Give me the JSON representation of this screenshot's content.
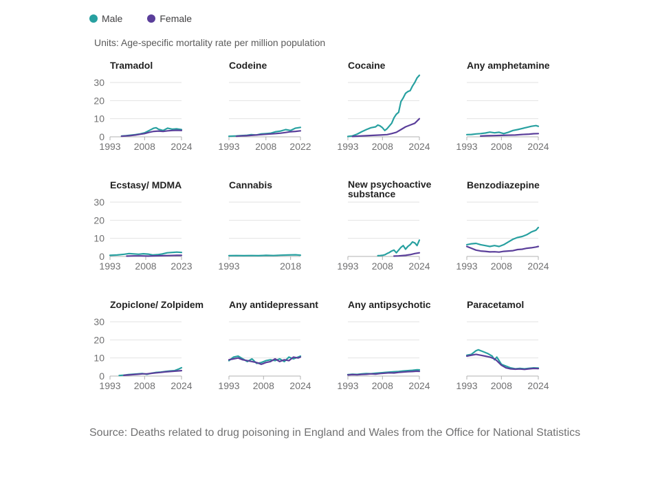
{
  "legend": [
    {
      "name": "Male",
      "color": "#27a0a0"
    },
    {
      "name": "Female",
      "color": "#5a3e9a"
    }
  ],
  "units_label": "Units: Age-specific mortality rate per million population",
  "source": "Source: Deaths related to drug poisoning in England and Wales from the Office for National Statistics",
  "chart_data": [
    {
      "type": "line",
      "title": "Tramadol",
      "xlim": [
        1993,
        2024
      ],
      "ylim": [
        0,
        30
      ],
      "xticks": [
        1993,
        2008,
        2024
      ],
      "yticks": [
        0,
        10,
        20,
        30
      ],
      "series": [
        {
          "name": "Male",
          "x": [
            1998,
            2000,
            2002,
            2004,
            2006,
            2008,
            2010,
            2012,
            2013,
            2014,
            2016,
            2018,
            2020,
            2022,
            2024
          ],
          "y": [
            0.4,
            0.6,
            0.9,
            1.2,
            1.6,
            2.2,
            3.5,
            4.8,
            5.0,
            4.2,
            3.5,
            4.8,
            4.2,
            4.4,
            4.0
          ]
        },
        {
          "name": "Female",
          "x": [
            1998,
            2000,
            2002,
            2004,
            2006,
            2008,
            2010,
            2012,
            2014,
            2016,
            2018,
            2020,
            2022,
            2024
          ],
          "y": [
            0.3,
            0.5,
            0.7,
            1.0,
            1.4,
            1.8,
            2.5,
            3.0,
            3.2,
            3.0,
            3.3,
            3.5,
            3.6,
            3.5
          ]
        }
      ]
    },
    {
      "type": "line",
      "title": "Codeine",
      "xlim": [
        1993,
        2022
      ],
      "ylim": [
        0,
        30
      ],
      "xticks": [
        1993,
        2008,
        2022
      ],
      "yticks": [
        0,
        10,
        20,
        30
      ],
      "series": [
        {
          "name": "Male",
          "x": [
            1993,
            1996,
            1998,
            2000,
            2002,
            2004,
            2006,
            2008,
            2010,
            2012,
            2014,
            2016,
            2018,
            2020,
            2022
          ],
          "y": [
            0.3,
            0.5,
            0.7,
            0.8,
            1.2,
            1.0,
            1.6,
            1.8,
            2.0,
            2.8,
            3.2,
            4.0,
            3.5,
            4.8,
            5.2
          ]
        },
        {
          "name": "Female",
          "x": [
            1996,
            1998,
            2000,
            2002,
            2004,
            2006,
            2008,
            2010,
            2012,
            2014,
            2016,
            2018,
            2020,
            2022
          ],
          "y": [
            0.3,
            0.5,
            0.6,
            0.8,
            1.0,
            1.2,
            1.4,
            1.6,
            1.8,
            2.0,
            2.4,
            2.8,
            3.0,
            3.3
          ]
        }
      ]
    },
    {
      "type": "line",
      "title": "Cocaine",
      "xlim": [
        1993,
        2024
      ],
      "ylim": [
        0,
        30
      ],
      "xticks": [
        1993,
        2008,
        2024
      ],
      "yticks": [
        0,
        10,
        20,
        30
      ],
      "series": [
        {
          "name": "Male",
          "x": [
            1993,
            1995,
            1997,
            1999,
            2001,
            2003,
            2005,
            2006,
            2007,
            2008,
            2009,
            2010,
            2011,
            2012,
            2013,
            2014,
            2015,
            2016,
            2017,
            2018,
            2019,
            2020,
            2021,
            2022,
            2023,
            2024
          ],
          "y": [
            0.2,
            0.5,
            1.5,
            2.8,
            4.0,
            5.0,
            5.5,
            6.5,
            6.0,
            5.0,
            3.5,
            4.5,
            6.0,
            7.5,
            10.5,
            12.5,
            13.5,
            19.5,
            21.5,
            24.0,
            25.0,
            25.5,
            28.0,
            30.0,
            32.5,
            34.0
          ]
        },
        {
          "name": "Female",
          "x": [
            1995,
            1998,
            2001,
            2004,
            2007,
            2010,
            2012,
            2014,
            2016,
            2018,
            2020,
            2022,
            2024
          ],
          "y": [
            0.2,
            0.4,
            0.6,
            0.8,
            1.0,
            1.2,
            1.8,
            2.5,
            4.0,
            5.5,
            6.5,
            7.5,
            10.0
          ]
        }
      ]
    },
    {
      "type": "line",
      "title": "Any amphetamine",
      "xlim": [
        1993,
        2024
      ],
      "ylim": [
        0,
        30
      ],
      "xticks": [
        1993,
        2008,
        2024
      ],
      "yticks": [
        0,
        10,
        20,
        30
      ],
      "series": [
        {
          "name": "Male",
          "x": [
            1993,
            1995,
            1997,
            1999,
            2001,
            2003,
            2005,
            2007,
            2009,
            2011,
            2013,
            2015,
            2017,
            2019,
            2021,
            2023,
            2024
          ],
          "y": [
            1.2,
            1.3,
            1.6,
            1.8,
            2.1,
            2.6,
            2.2,
            2.5,
            1.8,
            2.5,
            3.5,
            4.0,
            4.6,
            5.2,
            5.8,
            6.2,
            5.8
          ]
        },
        {
          "name": "Female",
          "x": [
            1999,
            2002,
            2005,
            2008,
            2011,
            2014,
            2017,
            2020,
            2022,
            2024
          ],
          "y": [
            0.4,
            0.6,
            0.7,
            0.8,
            0.9,
            1.0,
            1.3,
            1.5,
            1.7,
            1.8
          ]
        }
      ]
    },
    {
      "type": "line",
      "title": "Ecstasy/ MDMA",
      "xlim": [
        1993,
        2023
      ],
      "ylim": [
        0,
        30
      ],
      "xticks": [
        1993,
        2008,
        2023
      ],
      "yticks": [
        0,
        10,
        20,
        30
      ],
      "series": [
        {
          "name": "Male",
          "x": [
            1993,
            1996,
            1999,
            2001,
            2003,
            2005,
            2007,
            2009,
            2011,
            2013,
            2015,
            2017,
            2019,
            2021,
            2023
          ],
          "y": [
            0.6,
            0.8,
            1.2,
            1.6,
            1.4,
            1.2,
            1.5,
            1.3,
            0.8,
            1.0,
            1.4,
            2.0,
            2.2,
            2.4,
            2.2
          ]
        },
        {
          "name": "Female",
          "x": [
            2000,
            2003,
            2006,
            2009,
            2012,
            2015,
            2018,
            2021,
            2023
          ],
          "y": [
            0.2,
            0.3,
            0.3,
            0.2,
            0.3,
            0.4,
            0.5,
            0.6,
            0.6
          ]
        }
      ]
    },
    {
      "type": "line",
      "title": "Cannabis",
      "xlim": [
        1993,
        2022
      ],
      "ylim": [
        0,
        30
      ],
      "xticks": [
        1993,
        2018
      ],
      "yticks": [
        0,
        10,
        20,
        30
      ],
      "series": [
        {
          "name": "Male",
          "x": [
            1993,
            1996,
            1999,
            2002,
            2005,
            2008,
            2011,
            2014,
            2017,
            2020,
            2022
          ],
          "y": [
            0.4,
            0.5,
            0.4,
            0.5,
            0.4,
            0.6,
            0.5,
            0.7,
            0.8,
            0.9,
            0.7
          ]
        }
      ]
    },
    {
      "type": "line",
      "title": "New psychoactive substance",
      "xlim": [
        1993,
        2024
      ],
      "ylim": [
        0,
        30
      ],
      "xticks": [
        1993,
        2008,
        2024
      ],
      "yticks": [
        0,
        10,
        20,
        30
      ],
      "series": [
        {
          "name": "Male",
          "x": [
            2006,
            2007,
            2008,
            2009,
            2010,
            2011,
            2012,
            2013,
            2014,
            2015,
            2016,
            2017,
            2018,
            2019,
            2020,
            2021,
            2022,
            2023,
            2024
          ],
          "y": [
            0.4,
            0.5,
            0.6,
            0.9,
            1.6,
            2.2,
            3.0,
            3.5,
            2.0,
            3.5,
            5.0,
            6.0,
            4.0,
            5.5,
            6.5,
            8.0,
            7.5,
            6.0,
            9.0
          ]
        },
        {
          "name": "Female",
          "x": [
            2013,
            2015,
            2018,
            2020,
            2022,
            2024
          ],
          "y": [
            0.2,
            0.3,
            0.6,
            1.0,
            1.6,
            2.0
          ]
        }
      ]
    },
    {
      "type": "line",
      "title": "Benzodiazepine",
      "xlim": [
        1993,
        2024
      ],
      "ylim": [
        0,
        30
      ],
      "xticks": [
        1993,
        2008,
        2024
      ],
      "yticks": [
        0,
        10,
        20,
        30
      ],
      "series": [
        {
          "name": "Male",
          "x": [
            1993,
            1995,
            1997,
            1999,
            2001,
            2003,
            2005,
            2007,
            2009,
            2011,
            2013,
            2015,
            2017,
            2019,
            2021,
            2023,
            2024
          ],
          "y": [
            6.5,
            7.0,
            7.2,
            6.5,
            6.0,
            5.5,
            6.0,
            5.5,
            6.5,
            8.0,
            9.5,
            10.5,
            11.0,
            12.0,
            13.5,
            14.5,
            16.0
          ]
        },
        {
          "name": "Female",
          "x": [
            1993,
            1995,
            1997,
            1999,
            2001,
            2003,
            2005,
            2007,
            2009,
            2011,
            2013,
            2015,
            2017,
            2019,
            2021,
            2023,
            2024
          ],
          "y": [
            5.5,
            4.5,
            3.5,
            3.0,
            2.8,
            2.5,
            2.6,
            2.4,
            2.8,
            3.0,
            3.2,
            3.8,
            4.0,
            4.5,
            4.8,
            5.2,
            5.5
          ]
        }
      ]
    },
    {
      "type": "line",
      "title": "Zopiclone/ Zolpidem",
      "xlim": [
        1993,
        2024
      ],
      "ylim": [
        0,
        30
      ],
      "xticks": [
        1993,
        2008,
        2024
      ],
      "yticks": [
        0,
        10,
        20,
        30
      ],
      "series": [
        {
          "name": "Male",
          "x": [
            1997,
            1999,
            2001,
            2003,
            2005,
            2007,
            2009,
            2011,
            2013,
            2015,
            2017,
            2019,
            2021,
            2023,
            2024
          ],
          "y": [
            0.3,
            0.5,
            0.8,
            1.0,
            1.2,
            1.4,
            1.0,
            1.6,
            2.0,
            2.2,
            2.5,
            2.8,
            3.0,
            4.0,
            4.6
          ]
        },
        {
          "name": "Female",
          "x": [
            1999,
            2001,
            2003,
            2005,
            2007,
            2009,
            2011,
            2013,
            2015,
            2017,
            2019,
            2021,
            2023,
            2024
          ],
          "y": [
            0.4,
            0.6,
            0.8,
            1.0,
            1.2,
            1.2,
            1.5,
            1.8,
            2.0,
            2.3,
            2.5,
            2.7,
            2.9,
            3.0
          ]
        }
      ]
    },
    {
      "type": "line",
      "title": "Any antidepressant",
      "xlim": [
        1993,
        2024
      ],
      "ylim": [
        0,
        30
      ],
      "xticks": [
        1993,
        2008,
        2024
      ],
      "yticks": [
        0,
        10,
        20,
        30
      ],
      "series": [
        {
          "name": "Male",
          "x": [
            1993,
            1995,
            1997,
            1999,
            2001,
            2003,
            2005,
            2007,
            2009,
            2011,
            2013,
            2015,
            2017,
            2019,
            2021,
            2023,
            2024
          ],
          "y": [
            8.5,
            10.5,
            11.0,
            9.5,
            8.0,
            9.5,
            7.0,
            7.5,
            8.5,
            9.0,
            8.5,
            9.5,
            8.0,
            10.5,
            9.5,
            10.5,
            11.0
          ]
        },
        {
          "name": "Female",
          "x": [
            1993,
            1995,
            1997,
            1999,
            2001,
            2003,
            2005,
            2007,
            2009,
            2011,
            2013,
            2015,
            2017,
            2019,
            2021,
            2023,
            2024
          ],
          "y": [
            9.0,
            9.5,
            10.0,
            9.0,
            8.5,
            8.0,
            7.5,
            6.5,
            7.5,
            8.0,
            9.5,
            8.0,
            9.0,
            8.5,
            10.5,
            10.0,
            10.5
          ]
        }
      ]
    },
    {
      "type": "line",
      "title": "Any antipsychotic",
      "xlim": [
        1993,
        2024
      ],
      "ylim": [
        0,
        30
      ],
      "xticks": [
        1993,
        2008,
        2024
      ],
      "yticks": [
        0,
        10,
        20,
        30
      ],
      "series": [
        {
          "name": "Male",
          "x": [
            1993,
            1995,
            1997,
            1999,
            2001,
            2003,
            2005,
            2007,
            2009,
            2011,
            2013,
            2015,
            2017,
            2019,
            2021,
            2023,
            2024
          ],
          "y": [
            0.8,
            1.0,
            0.9,
            1.2,
            1.4,
            1.3,
            1.6,
            1.8,
            2.0,
            2.2,
            2.4,
            2.5,
            2.8,
            3.0,
            3.2,
            3.5,
            3.4
          ]
        },
        {
          "name": "Female",
          "x": [
            1993,
            1995,
            1997,
            1999,
            2001,
            2003,
            2005,
            2007,
            2009,
            2011,
            2013,
            2015,
            2017,
            2019,
            2021,
            2023,
            2024
          ],
          "y": [
            0.6,
            0.8,
            0.7,
            0.9,
            1.0,
            1.2,
            1.1,
            1.4,
            1.6,
            1.8,
            1.7,
            2.0,
            2.2,
            2.4,
            2.5,
            2.7,
            2.6
          ]
        }
      ]
    },
    {
      "type": "line",
      "title": "Paracetamol",
      "xlim": [
        1993,
        2024
      ],
      "ylim": [
        0,
        30
      ],
      "xticks": [
        1993,
        2008,
        2024
      ],
      "yticks": [
        0,
        10,
        20,
        30
      ],
      "series": [
        {
          "name": "Male",
          "x": [
            1993,
            1995,
            1997,
            1998,
            2000,
            2002,
            2004,
            2005,
            2006,
            2008,
            2010,
            2012,
            2014,
            2016,
            2018,
            2020,
            2022,
            2024
          ],
          "y": [
            11.5,
            12.0,
            14.0,
            14.5,
            13.5,
            12.5,
            11.0,
            9.0,
            10.5,
            6.5,
            5.5,
            4.5,
            4.0,
            4.2,
            4.0,
            4.3,
            4.5,
            4.4
          ]
        },
        {
          "name": "Female",
          "x": [
            1993,
            1995,
            1997,
            1999,
            2001,
            2003,
            2005,
            2006,
            2008,
            2010,
            2012,
            2014,
            2016,
            2018,
            2020,
            2022,
            2024
          ],
          "y": [
            11.0,
            11.5,
            12.0,
            11.5,
            11.0,
            10.5,
            9.5,
            8.5,
            6.0,
            4.5,
            4.0,
            3.8,
            3.9,
            3.7,
            4.0,
            4.2,
            4.1
          ]
        }
      ]
    }
  ]
}
